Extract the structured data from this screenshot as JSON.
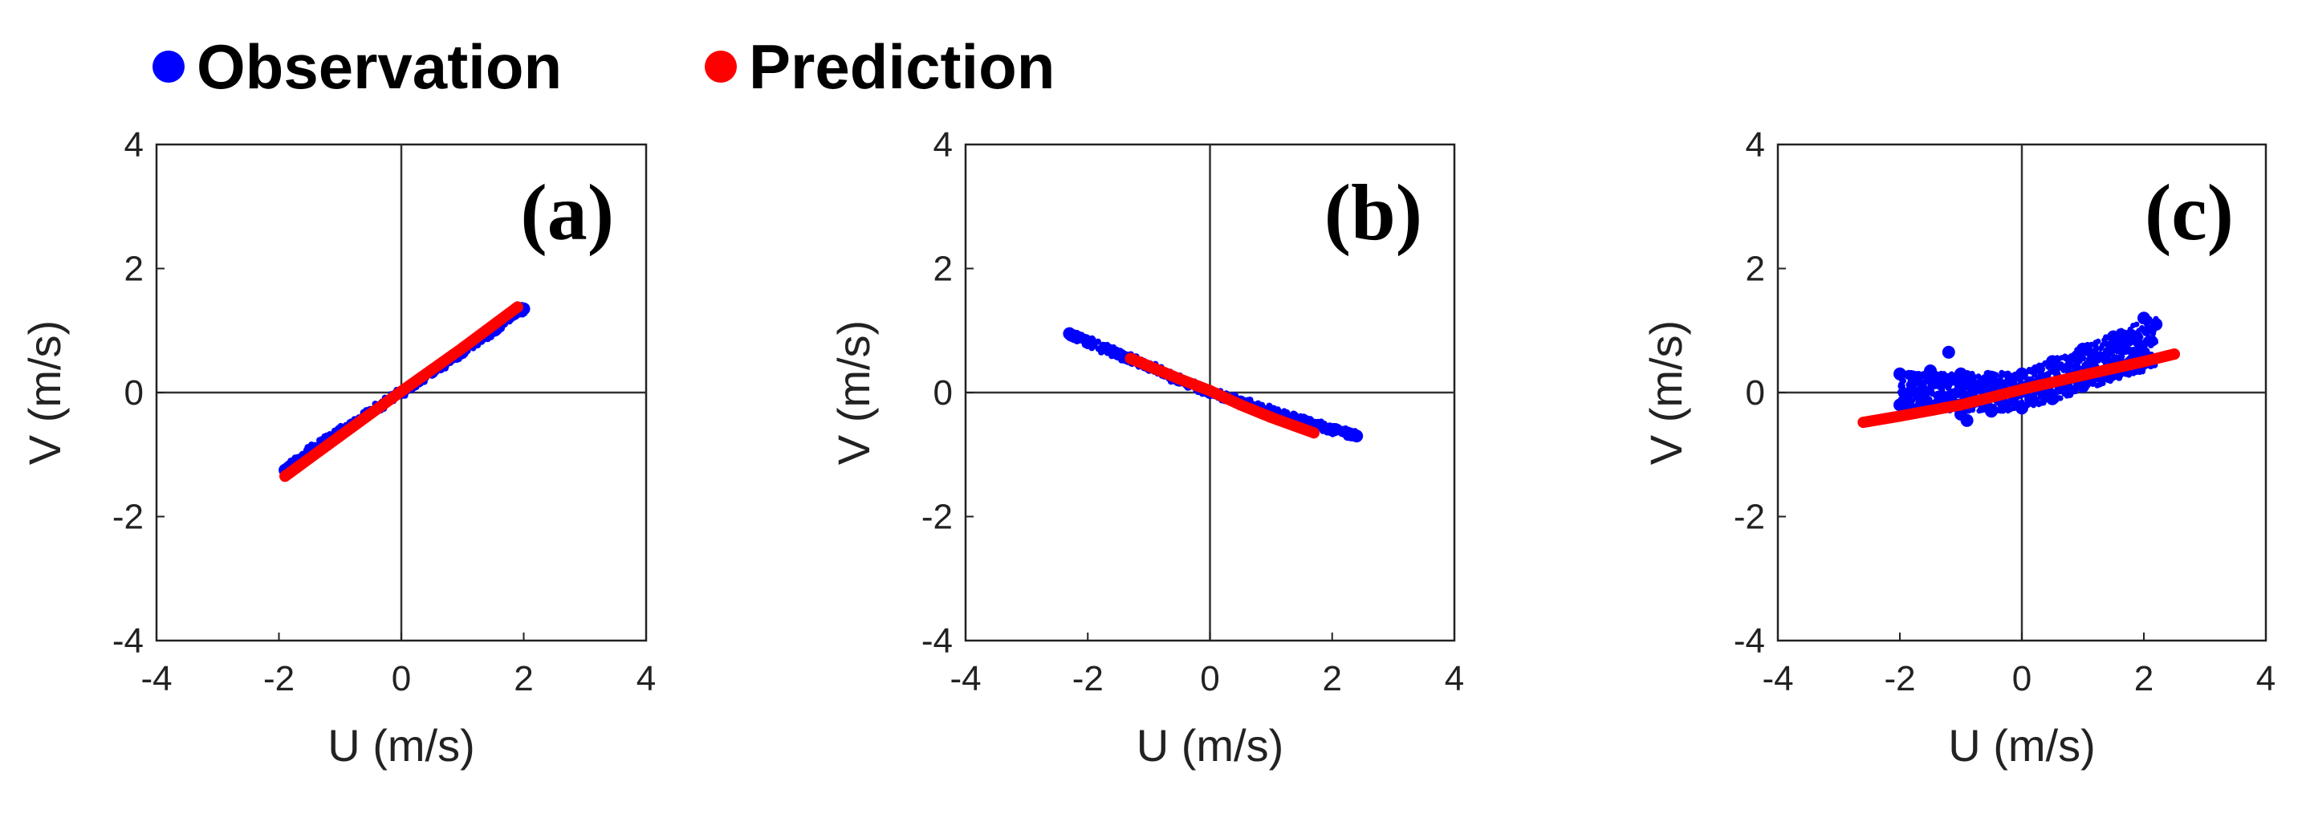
{
  "legend": [
    {
      "name": "Observation",
      "color": "#0000ff"
    },
    {
      "name": "Prediction",
      "color": "#ff0000"
    }
  ],
  "chart_data": [
    {
      "type": "scatter",
      "panel_label": "(a)",
      "xlabel": "U (m/s)",
      "ylabel": "V (m/s)",
      "xlim": [
        -4,
        4
      ],
      "ylim": [
        -4,
        4
      ],
      "xticks": [
        "-4",
        "-2",
        "0",
        "2",
        "4"
      ],
      "yticks": [
        "-4",
        "-2",
        "0",
        "2",
        "4"
      ],
      "series": [
        {
          "name": "Observation",
          "color": "#0000ff",
          "x": [
            -1.9,
            -1.5,
            -1.0,
            -0.5,
            0.0,
            0.5,
            1.0,
            1.5,
            1.8,
            2.0
          ],
          "y": [
            -1.25,
            -0.95,
            -0.62,
            -0.32,
            0.0,
            0.33,
            0.66,
            1.0,
            1.25,
            1.35
          ]
        },
        {
          "name": "Prediction",
          "color": "#ff0000",
          "x": [
            -1.9,
            -1.0,
            0.0,
            1.0,
            1.9
          ],
          "y": [
            -1.35,
            -0.7,
            0.02,
            0.72,
            1.38
          ]
        }
      ]
    },
    {
      "type": "scatter",
      "panel_label": "(b)",
      "xlabel": "U (m/s)",
      "ylabel": "V (m/s)",
      "xlim": [
        -4,
        4
      ],
      "ylim": [
        -4,
        4
      ],
      "xticks": [
        "-4",
        "-2",
        "0",
        "2",
        "4"
      ],
      "yticks": [
        "-4",
        "-2",
        "0",
        "2",
        "4"
      ],
      "series": [
        {
          "name": "Observation",
          "color": "#0000ff",
          "x": [
            -2.3,
            -2.0,
            -1.5,
            -1.0,
            -0.5,
            0.0,
            0.5,
            1.0,
            1.5,
            2.0,
            2.4
          ],
          "y": [
            0.95,
            0.82,
            0.62,
            0.42,
            0.2,
            0.0,
            -0.15,
            -0.3,
            -0.45,
            -0.6,
            -0.7
          ]
        },
        {
          "name": "Prediction",
          "color": "#ff0000",
          "x": [
            -1.3,
            -0.5,
            0.0,
            0.5,
            1.0,
            1.7
          ],
          "y": [
            0.55,
            0.22,
            0.03,
            -0.2,
            -0.4,
            -0.65
          ]
        }
      ]
    },
    {
      "type": "scatter",
      "panel_label": "(c)",
      "xlabel": "U (m/s)",
      "ylabel": "V (m/s)",
      "xlim": [
        -4,
        4
      ],
      "ylim": [
        -4,
        4
      ],
      "xticks": [
        "-4",
        "-2",
        "0",
        "2",
        "4"
      ],
      "yticks": [
        "-4",
        "-2",
        "0",
        "2",
        "4"
      ],
      "series": [
        {
          "name": "Observation",
          "color": "#0000ff",
          "x": [
            -2.0,
            -2.0,
            -1.5,
            -1.5,
            -1.0,
            -1.0,
            -0.5,
            -0.5,
            0.0,
            0.0,
            0.5,
            0.5,
            1.0,
            1.0,
            1.5,
            1.5,
            2.0,
            2.0,
            2.2,
            -1.2,
            -0.9
          ],
          "y": [
            0.3,
            -0.2,
            0.35,
            -0.25,
            0.3,
            -0.35,
            0.25,
            -0.3,
            0.3,
            -0.25,
            0.5,
            -0.1,
            0.7,
            0.1,
            0.9,
            0.3,
            1.2,
            0.5,
            1.1,
            0.65,
            -0.45
          ]
        },
        {
          "name": "Prediction",
          "color": "#ff0000",
          "x": [
            -2.6,
            -2.0,
            -1.0,
            0.0,
            1.0,
            2.0,
            2.5
          ],
          "y": [
            -0.48,
            -0.38,
            -0.2,
            0.05,
            0.28,
            0.5,
            0.62
          ]
        }
      ]
    }
  ]
}
